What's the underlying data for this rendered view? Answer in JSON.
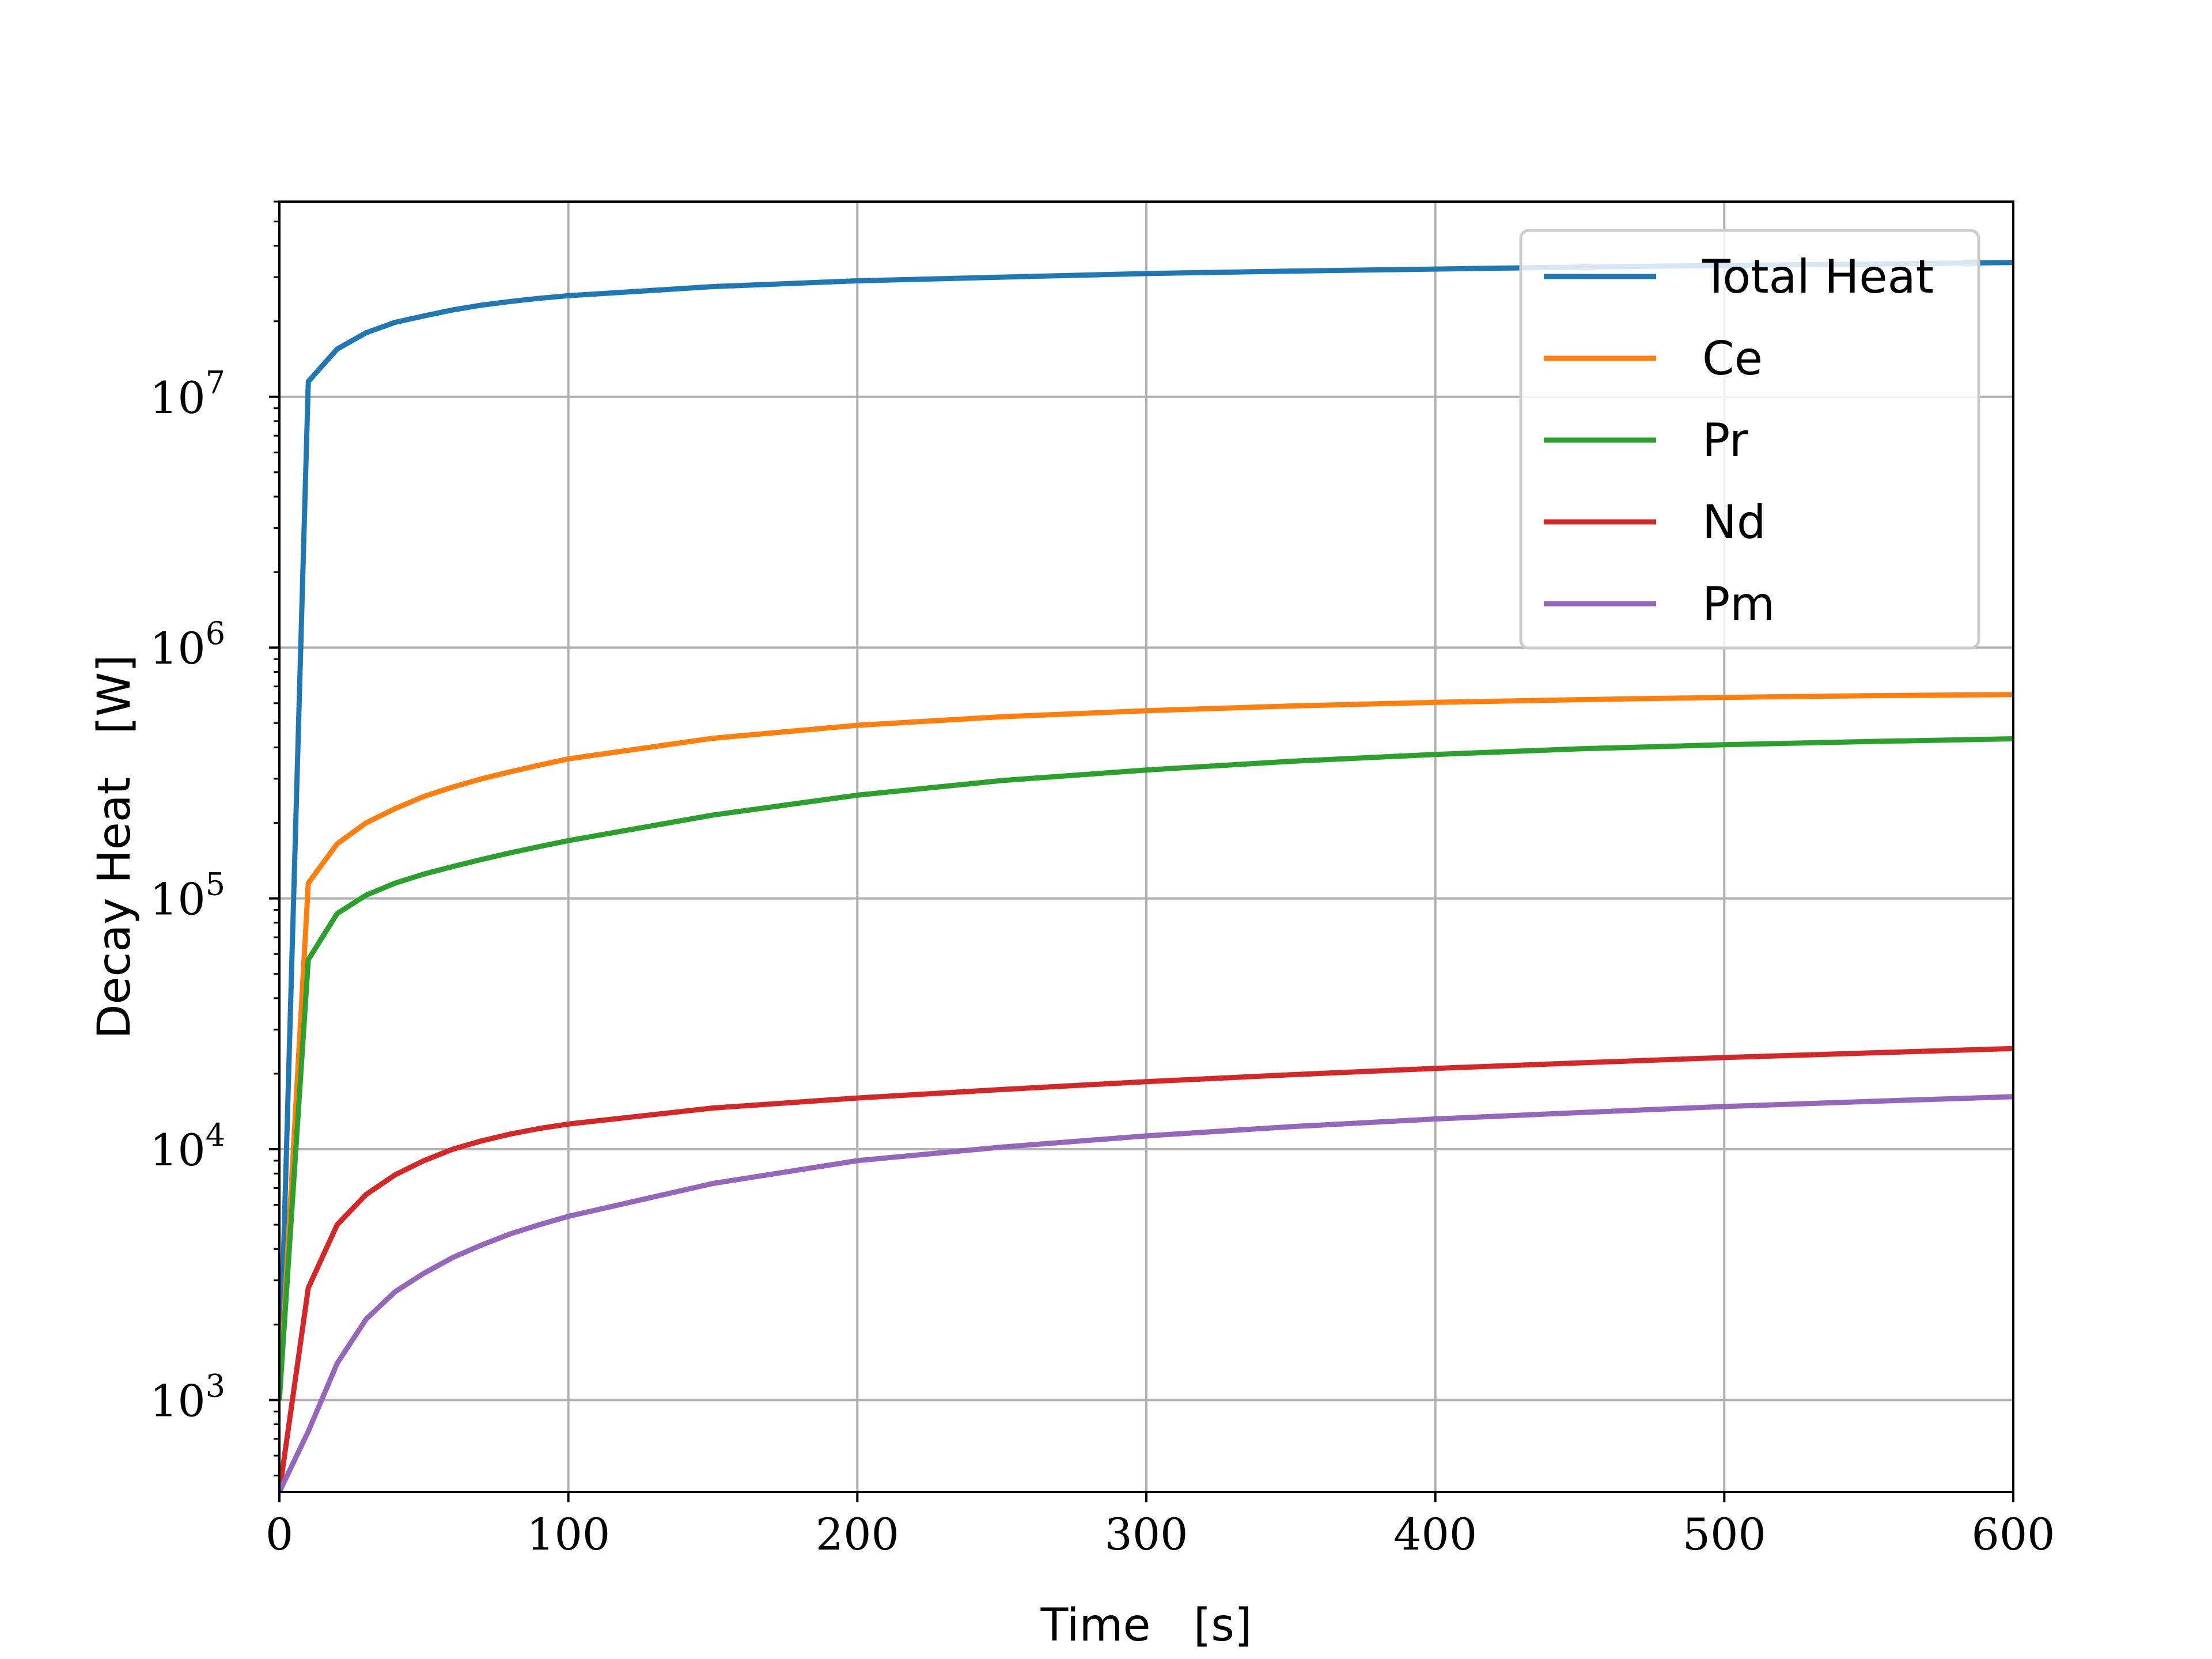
{
  "chart_data": {
    "type": "line",
    "title": "",
    "xlabel": "Time   [s]",
    "ylabel": "Decay Heat   [W]",
    "xlim": [
      0,
      600
    ],
    "ylim": [
      430,
      60000000
    ],
    "yscale": "log",
    "grid": true,
    "legend_position": "top-right",
    "x_ticks": [
      {
        "value": 0,
        "label": "0"
      },
      {
        "value": 100,
        "label": "100"
      },
      {
        "value": 200,
        "label": "200"
      },
      {
        "value": 300,
        "label": "300"
      },
      {
        "value": 400,
        "label": "400"
      },
      {
        "value": 500,
        "label": "500"
      },
      {
        "value": 600,
        "label": "600"
      }
    ],
    "y_ticks": [
      {
        "value": 1000,
        "base": "10",
        "exp": "3"
      },
      {
        "value": 10000,
        "base": "10",
        "exp": "4"
      },
      {
        "value": 100000,
        "base": "10",
        "exp": "5"
      },
      {
        "value": 1000000,
        "base": "10",
        "exp": "6"
      },
      {
        "value": 10000000,
        "base": "10",
        "exp": "7"
      }
    ],
    "x": [
      0,
      10,
      20,
      30,
      40,
      50,
      60,
      70,
      80,
      90,
      100,
      150,
      200,
      250,
      300,
      350,
      400,
      450,
      500,
      550,
      600
    ],
    "series": [
      {
        "name": "Total Heat",
        "color": "#1f77b4",
        "values": [
          1000,
          11500000,
          15500000,
          18000000,
          19800000,
          21000000,
          22200000,
          23200000,
          24000000,
          24700000,
          25300000,
          27500000,
          29000000,
          30000000,
          31000000,
          31700000,
          32300000,
          32900000,
          33400000,
          33800000,
          34300000
        ]
      },
      {
        "name": "Ce",
        "color": "#ff7f0e",
        "values": [
          1000,
          115000,
          165000,
          200000,
          228000,
          255000,
          278000,
          300000,
          320000,
          340000,
          360000,
          435000,
          490000,
          530000,
          560000,
          585000,
          605000,
          620000,
          633000,
          643000,
          650000
        ]
      },
      {
        "name": "Pr",
        "color": "#2ca02c",
        "values": [
          1000,
          57000,
          87000,
          103000,
          115000,
          125000,
          134000,
          143000,
          152000,
          161000,
          170000,
          215000,
          258000,
          295000,
          325000,
          352000,
          375000,
          395000,
          410000,
          422000,
          433000
        ]
      },
      {
        "name": "Nd",
        "color": "#d62728",
        "values": [
          430,
          2800,
          5000,
          6600,
          7900,
          9000,
          10000,
          10800,
          11500,
          12100,
          12600,
          14600,
          16000,
          17300,
          18600,
          19800,
          21000,
          22100,
          23200,
          24200,
          25200
        ]
      },
      {
        "name": "Pm",
        "color": "#9467bd",
        "values": [
          430,
          750,
          1400,
          2100,
          2700,
          3200,
          3700,
          4150,
          4600,
          5000,
          5400,
          7300,
          9000,
          10200,
          11300,
          12300,
          13200,
          14000,
          14800,
          15500,
          16200
        ]
      }
    ]
  }
}
